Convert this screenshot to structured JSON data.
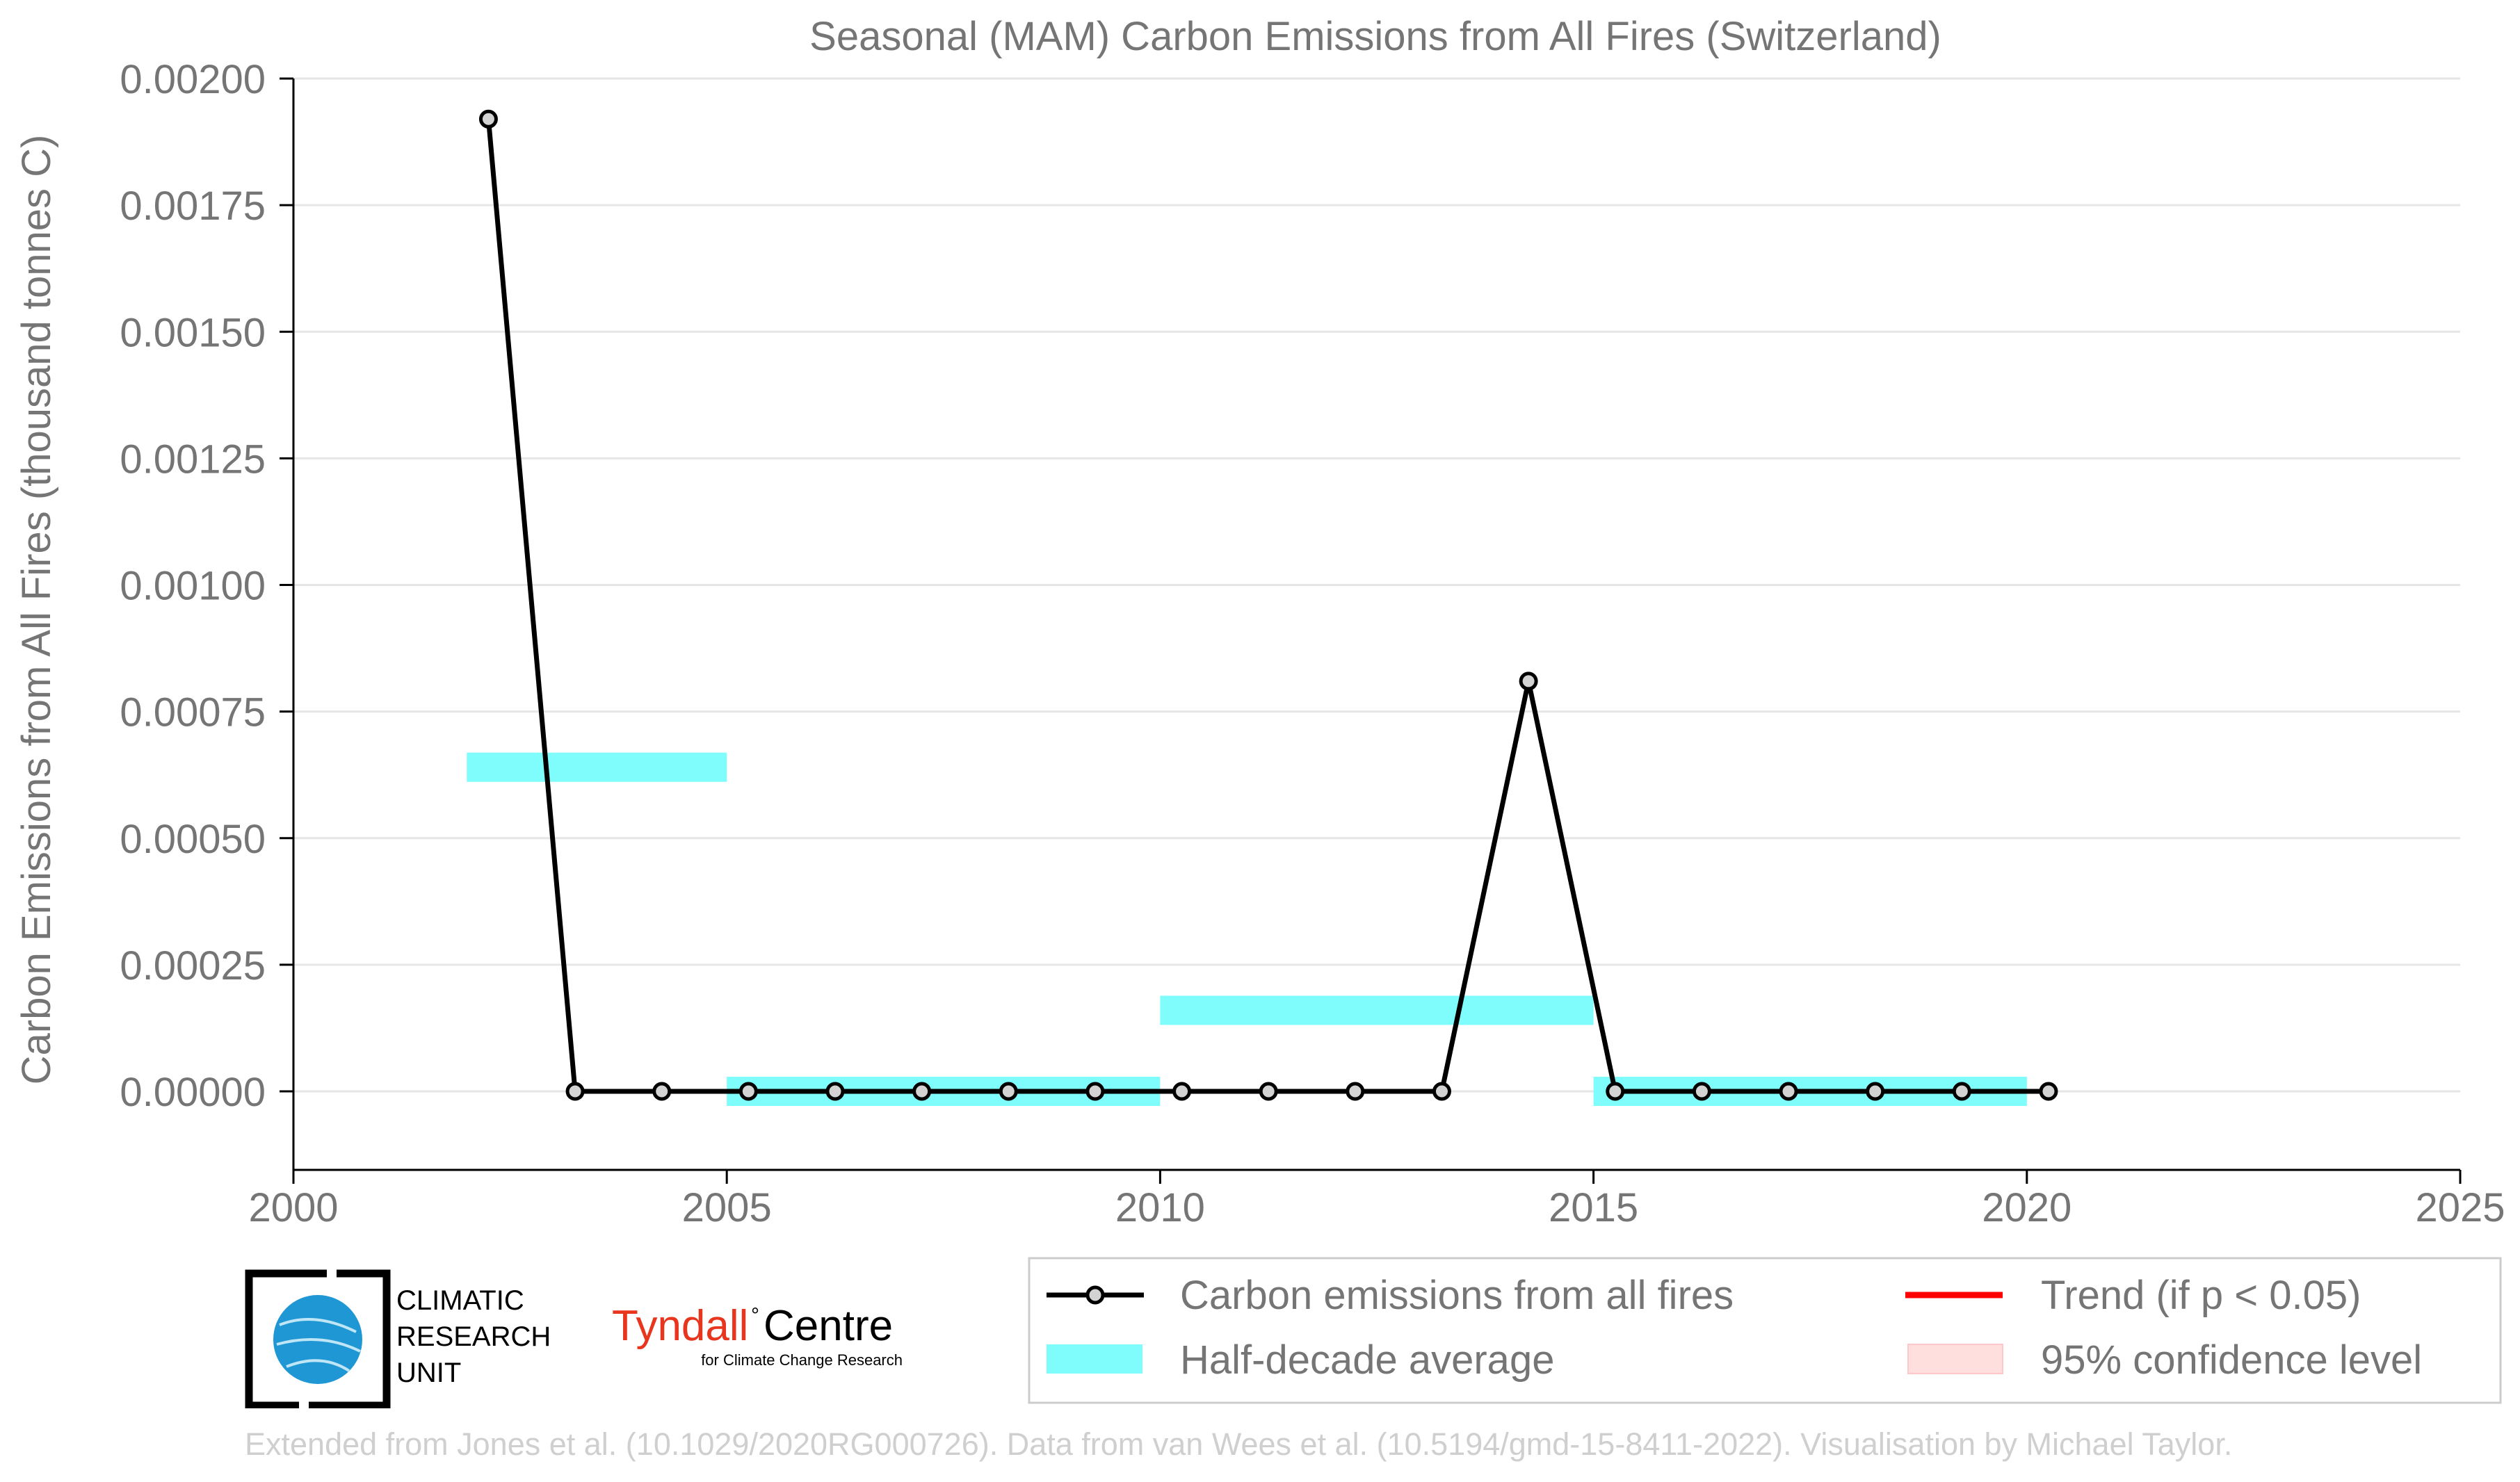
{
  "chart_data": {
    "type": "line",
    "title": "Seasonal (MAM) Carbon Emissions from All Fires (Switzerland)",
    "xlabel": "",
    "ylabel": "Carbon Emissions from All Fires (thousand tonnes C)",
    "xlim": [
      2000,
      2025
    ],
    "ylim": [
      -0.00015,
      0.002
    ],
    "xticks": [
      "2000",
      "2005",
      "2010",
      "2015",
      "2020",
      "2025"
    ],
    "yticks": [
      "0.00000",
      "0.00025",
      "0.00050",
      "0.00075",
      "0.00100",
      "0.00125",
      "0.00150",
      "0.00175",
      "0.00200"
    ],
    "grid": "horizontal",
    "legend_position": "bottom-right",
    "series": [
      {
        "name": "Carbon emissions from all fires",
        "x": [
          2002.25,
          2003.25,
          2004.25,
          2005.25,
          2006.25,
          2007.25,
          2008.25,
          2009.25,
          2010.25,
          2011.25,
          2012.25,
          2013.25,
          2014.25,
          2015.25,
          2016.25,
          2017.25,
          2018.25,
          2019.25,
          2020.25
        ],
        "y": [
          0.00192,
          0,
          0,
          0,
          0,
          0,
          0,
          0,
          0,
          0,
          0,
          0,
          0.00081,
          0,
          0,
          0,
          0,
          0,
          0
        ],
        "color": "#000000"
      }
    ],
    "half_decade_average": {
      "name": "Half-decade average",
      "color": "#7ffcfc",
      "segments": [
        {
          "x0": 2002,
          "x1": 2005,
          "y": 0.00064
        },
        {
          "x0": 2005,
          "x1": 2010,
          "y": 0.0
        },
        {
          "x0": 2010,
          "x1": 2015,
          "y": 0.00016
        },
        {
          "x0": 2015,
          "x1": 2020,
          "y": 0.0
        }
      ]
    },
    "legend": [
      {
        "key": "line",
        "label": "Carbon emissions from all fires"
      },
      {
        "key": "trend",
        "label": "Trend (if p < 0.05)",
        "color": "#ff0000"
      },
      {
        "key": "avg",
        "label": "Half-decade average"
      },
      {
        "key": "ci",
        "label": "95% confidence level",
        "color": "#ffdede"
      }
    ]
  },
  "logos": {
    "cru_lines": [
      "CLIMATIC",
      "RESEARCH",
      "UNIT"
    ],
    "tyndall_name": "Tyndall",
    "tyndall_centre": "Centre",
    "tyndall_sub": "for Climate Change Research"
  },
  "credit": "Extended from Jones et al. (10.1029/2020RG000726). Data from van Wees et al. (10.5194/gmd-15-8411-2022). Visualisation by Michael Taylor."
}
